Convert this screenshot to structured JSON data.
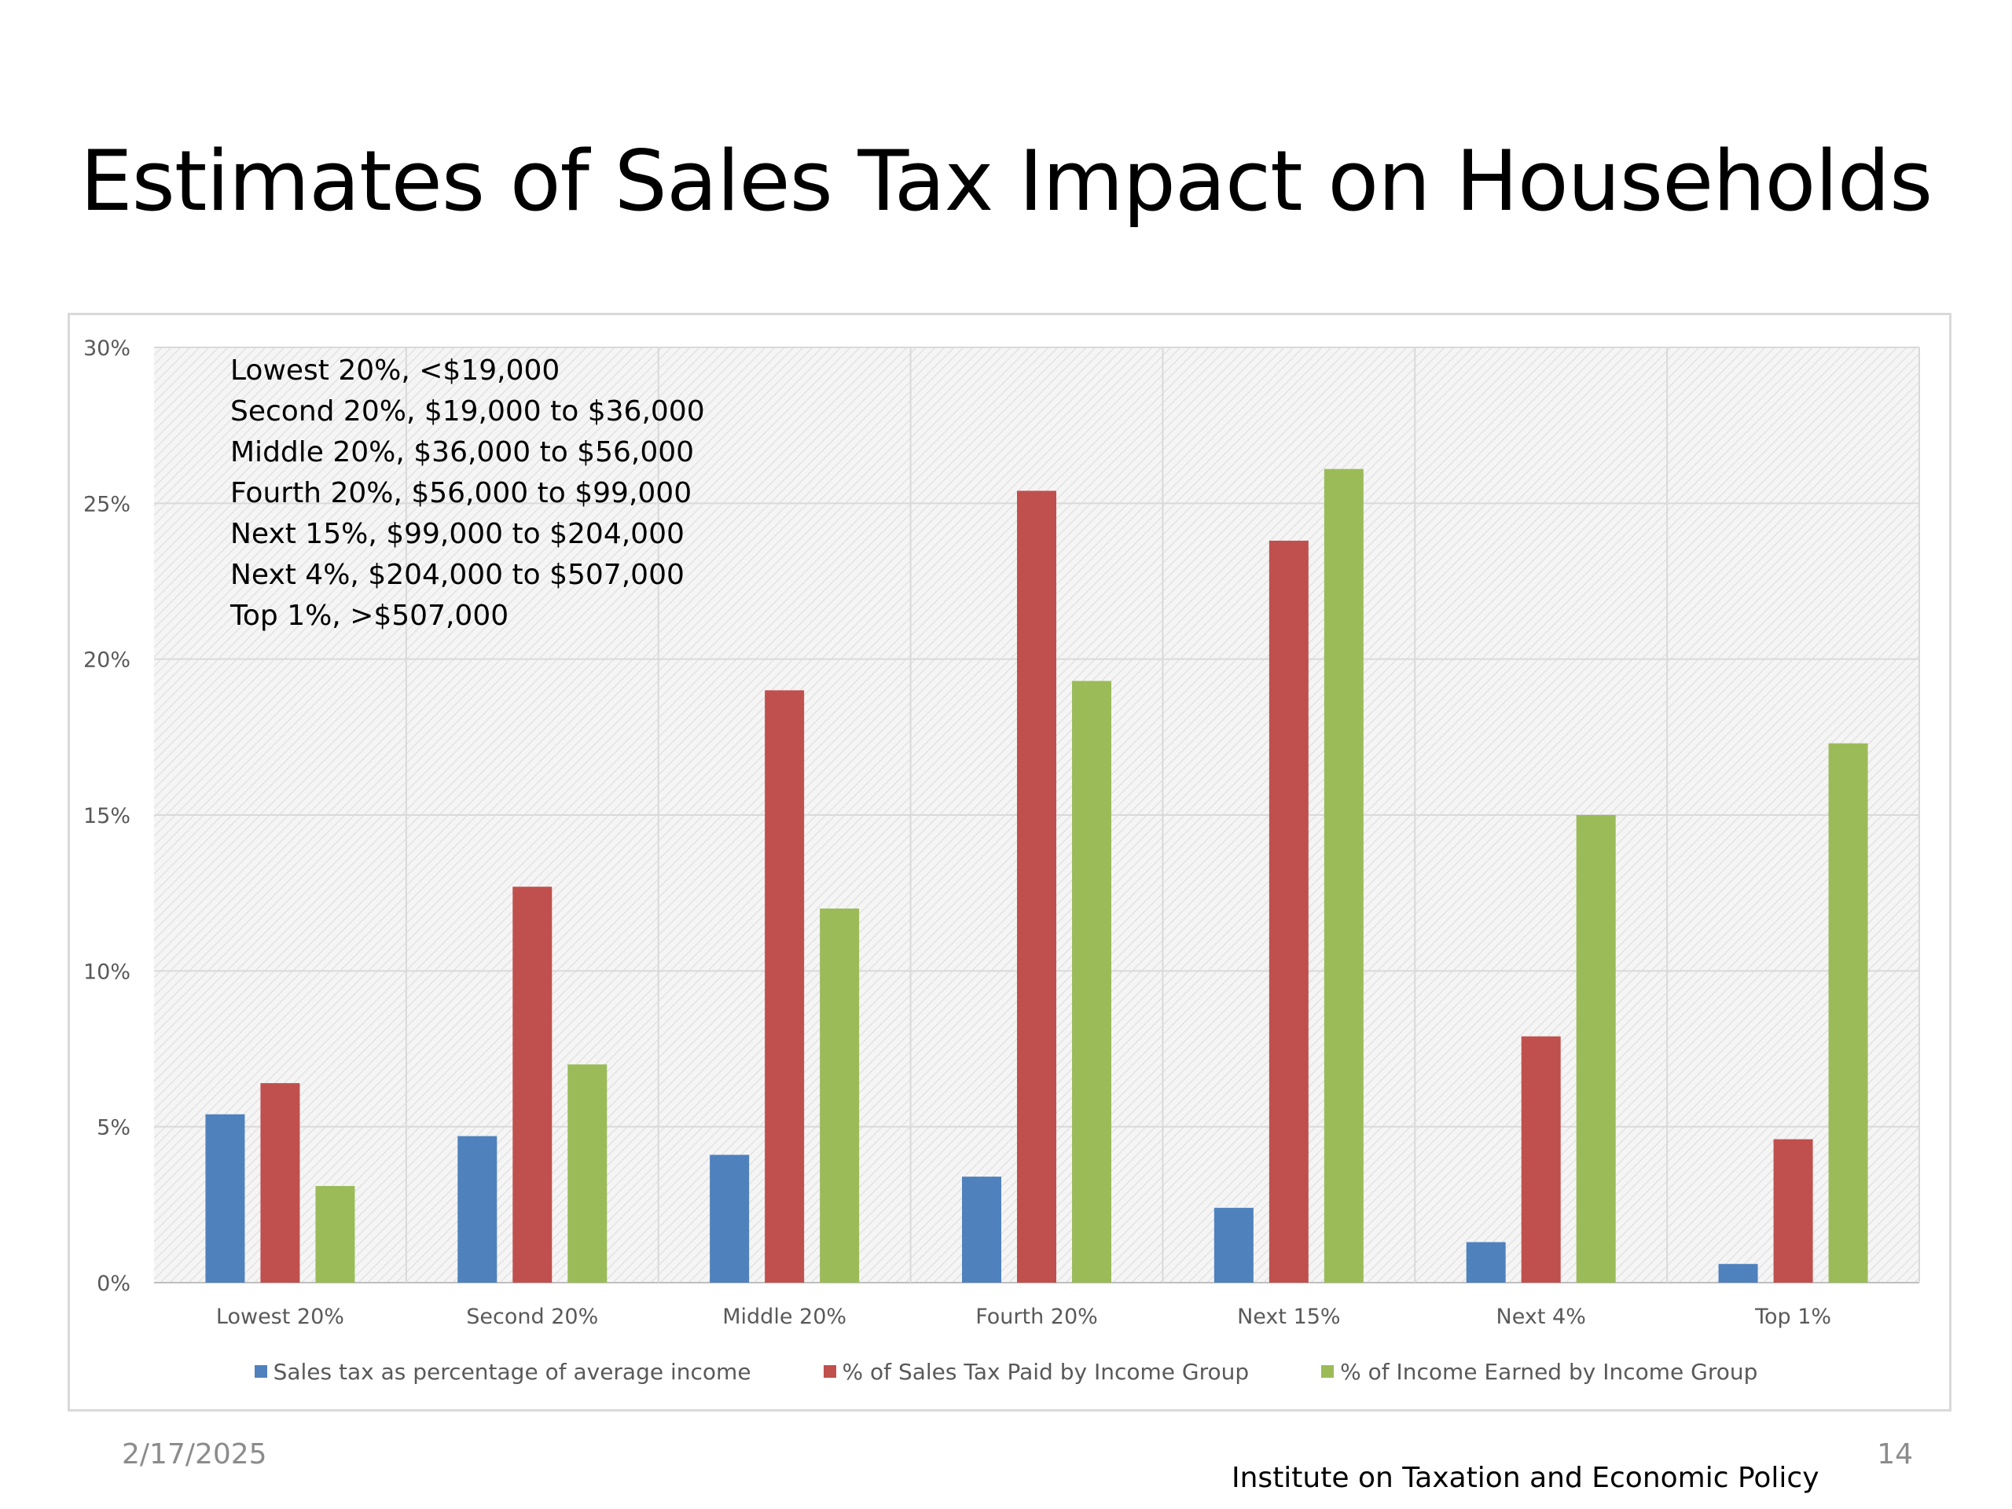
{
  "slide": {
    "title": "Estimates of Sales Tax Impact on Households",
    "date": "2/17/2025",
    "organization": "Institute on Taxation and Economic Policy",
    "page_number": "14"
  },
  "income_brackets": [
    "Lowest 20%, <$19,000",
    "Second 20%, $19,000 to $36,000",
    "Middle 20%, $36,000 to $56,000",
    "Fourth 20%, $56,000 to $99,000",
    "Next 15%, $99,000 to $204,000",
    "Next 4%, $204,000 to $507,000",
    "Top 1%, >$507,000"
  ],
  "chart_data": {
    "type": "bar",
    "title": "",
    "xlabel": "",
    "ylabel": "",
    "categories": [
      "Lowest 20%",
      "Second 20%",
      "Middle 20%",
      "Fourth 20%",
      "Next 15%",
      "Next 4%",
      "Top 1%"
    ],
    "series": [
      {
        "name": "Sales tax as percentage of average income",
        "color": "#4f81bd",
        "values": [
          5.4,
          4.7,
          4.1,
          3.4,
          2.4,
          1.3,
          0.6
        ]
      },
      {
        "name": "% of Sales Tax Paid by Income Group",
        "color": "#c0504d",
        "values": [
          6.4,
          12.7,
          19.0,
          25.4,
          23.8,
          7.9,
          4.6
        ]
      },
      {
        "name": "% of Income Earned by Income Group",
        "color": "#9bbb59",
        "values": [
          3.1,
          7.0,
          12.0,
          19.3,
          26.1,
          15.0,
          17.3
        ]
      }
    ],
    "ylim": [
      0,
      30
    ],
    "yticks": [
      0,
      5,
      10,
      15,
      20,
      25,
      30
    ],
    "ytick_labels": [
      "0%",
      "5%",
      "10%",
      "15%",
      "20%",
      "25%",
      "30%"
    ],
    "grid": true,
    "legend_position": "bottom"
  }
}
